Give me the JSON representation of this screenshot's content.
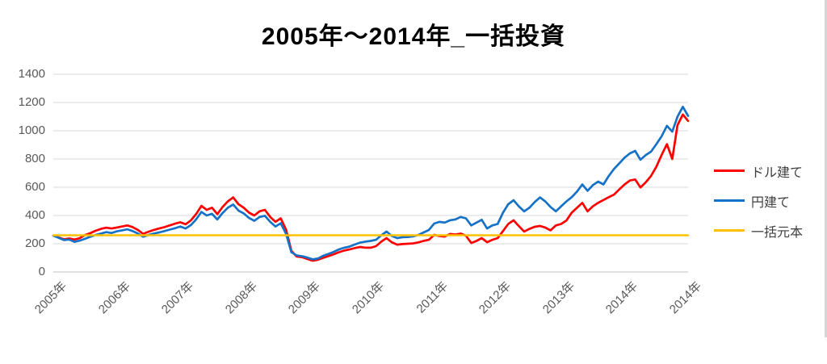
{
  "chart_data": {
    "type": "line",
    "title": "2005年～2014年_一括投資",
    "grid": "horizontal",
    "legend_position": "right",
    "x": {
      "unit": "year",
      "tick_labels": [
        "2005年",
        "2006年",
        "2007年",
        "2008年",
        "2009年",
        "2010年",
        "2011年",
        "2012年",
        "2013年",
        "2014年",
        "2014年"
      ]
    },
    "y": {
      "min": 0,
      "max": 1400,
      "step": 200,
      "tick_labels": [
        "0",
        "200",
        "400",
        "600",
        "800",
        "1000",
        "1200",
        "1400"
      ]
    },
    "series": [
      {
        "name": "ドル建て",
        "color": "#FF0000",
        "values": [
          258,
          245,
          232,
          238,
          230,
          240,
          262,
          275,
          292,
          305,
          314,
          308,
          315,
          322,
          330,
          318,
          298,
          270,
          285,
          298,
          308,
          318,
          330,
          342,
          352,
          338,
          365,
          410,
          468,
          440,
          455,
          410,
          460,
          500,
          528,
          480,
          455,
          420,
          400,
          430,
          440,
          390,
          355,
          380,
          300,
          150,
          110,
          105,
          92,
          80,
          86,
          100,
          112,
          125,
          140,
          152,
          160,
          170,
          177,
          172,
          172,
          183,
          215,
          240,
          210,
          194,
          198,
          200,
          202,
          210,
          220,
          228,
          263,
          255,
          251,
          270,
          265,
          272,
          257,
          205,
          220,
          240,
          211,
          228,
          240,
          290,
          340,
          366,
          325,
          286,
          305,
          320,
          326,
          315,
          295,
          330,
          340,
          365,
          420,
          455,
          490,
          430,
          465,
          490,
          510,
          530,
          548,
          585,
          620,
          648,
          655,
          598,
          635,
          680,
          745,
          830,
          905,
          800,
          1040,
          1115,
          1070
        ]
      },
      {
        "name": "円建て",
        "color": "#1572C6",
        "values": [
          258,
          242,
          226,
          230,
          213,
          222,
          235,
          250,
          262,
          272,
          282,
          276,
          288,
          295,
          302,
          290,
          272,
          250,
          262,
          272,
          280,
          290,
          300,
          310,
          322,
          308,
          332,
          372,
          425,
          400,
          412,
          372,
          418,
          455,
          478,
          435,
          415,
          382,
          362,
          390,
          398,
          355,
          322,
          345,
          270,
          140,
          118,
          112,
          102,
          90,
          95,
          115,
          128,
          142,
          160,
          172,
          180,
          195,
          208,
          215,
          220,
          228,
          260,
          286,
          255,
          240,
          246,
          248,
          252,
          262,
          280,
          297,
          343,
          355,
          350,
          366,
          372,
          390,
          380,
          330,
          350,
          370,
          308,
          330,
          340,
          420,
          480,
          508,
          465,
          429,
          455,
          495,
          528,
          500,
          460,
          430,
          465,
          500,
          530,
          570,
          620,
          575,
          615,
          640,
          620,
          680,
          730,
          770,
          810,
          840,
          857,
          795,
          828,
          852,
          905,
          962,
          1035,
          994,
          1100,
          1170,
          1105
        ]
      },
      {
        "name": "一括元本",
        "color": "#FFC000",
        "constant": 260
      }
    ]
  }
}
